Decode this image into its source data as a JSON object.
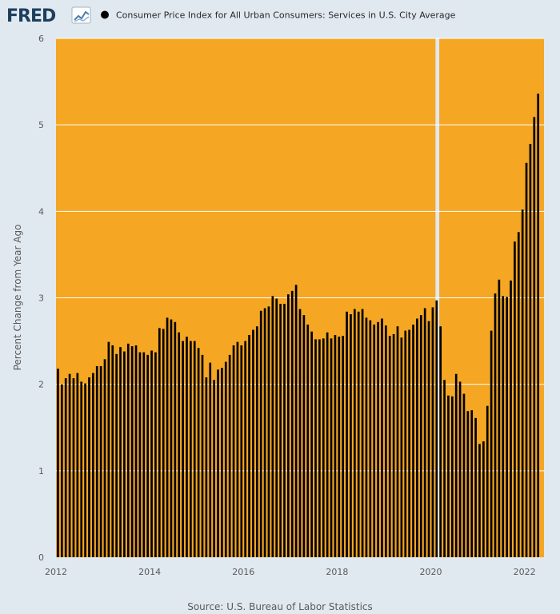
{
  "logo": {
    "text": "FRED"
  },
  "legend": {
    "label": "Consumer Price Index for All Urban Consumers: Services in U.S. City Average"
  },
  "source": "Source: U.S. Bureau of Labor Statistics",
  "colors": {
    "background": "#e1e9f0",
    "plot_fill": "#f5a623",
    "bar": "#000000",
    "recession_gap": "#e1e9f0",
    "grid": "#ffffff"
  },
  "chart_data": {
    "type": "bar",
    "title": "Consumer Price Index for All Urban Consumers: Services in U.S. City Average",
    "xlabel": "",
    "ylabel": "Percent Change from Year Ago",
    "ylim": [
      0,
      6
    ],
    "yticks": [
      "0",
      "1",
      "2",
      "3",
      "4",
      "5",
      "6"
    ],
    "xticks": [
      "2012",
      "2014",
      "2016",
      "2018",
      "2020",
      "2022"
    ],
    "x_range": [
      "2012-01",
      "2022-05"
    ],
    "grid": true,
    "legend_position": "top",
    "recession_shading": {
      "start": "2020-02",
      "end": "2020-04"
    },
    "series": [
      {
        "name": "Consumer Price Index for All Urban Consumers: Services in U.S. City Average",
        "start": "2012-01",
        "frequency": "monthly",
        "values": [
          2.18,
          2.0,
          2.07,
          2.12,
          2.07,
          2.13,
          2.03,
          2.01,
          2.08,
          2.13,
          2.21,
          2.21,
          2.29,
          2.49,
          2.45,
          2.35,
          2.43,
          2.38,
          2.47,
          2.44,
          2.45,
          2.37,
          2.37,
          2.34,
          2.39,
          2.37,
          2.65,
          2.64,
          2.77,
          2.75,
          2.72,
          2.6,
          2.5,
          2.55,
          2.5,
          2.5,
          2.42,
          2.34,
          2.08,
          2.25,
          2.05,
          2.17,
          2.19,
          2.26,
          2.34,
          2.45,
          2.49,
          2.45,
          2.5,
          2.57,
          2.63,
          2.67,
          2.85,
          2.88,
          2.9,
          3.02,
          2.99,
          2.93,
          2.93,
          3.04,
          3.08,
          3.15,
          2.87,
          2.8,
          2.69,
          2.61,
          2.52,
          2.52,
          2.53,
          2.6,
          2.53,
          2.57,
          2.55,
          2.56,
          2.84,
          2.81,
          2.87,
          2.84,
          2.87,
          2.77,
          2.74,
          2.69,
          2.72,
          2.76,
          2.68,
          2.56,
          2.58,
          2.67,
          2.54,
          2.62,
          2.63,
          2.69,
          2.76,
          2.8,
          2.88,
          2.73,
          2.89,
          2.97,
          2.67,
          2.05,
          1.87,
          1.86,
          2.12,
          2.03,
          1.89,
          1.69,
          1.7,
          1.61,
          1.31,
          1.34,
          1.75,
          2.62,
          3.05,
          3.21,
          3.02,
          3.01,
          3.2,
          3.65,
          3.76,
          4.02,
          4.56,
          4.78,
          5.09,
          5.36
        ]
      }
    ]
  }
}
